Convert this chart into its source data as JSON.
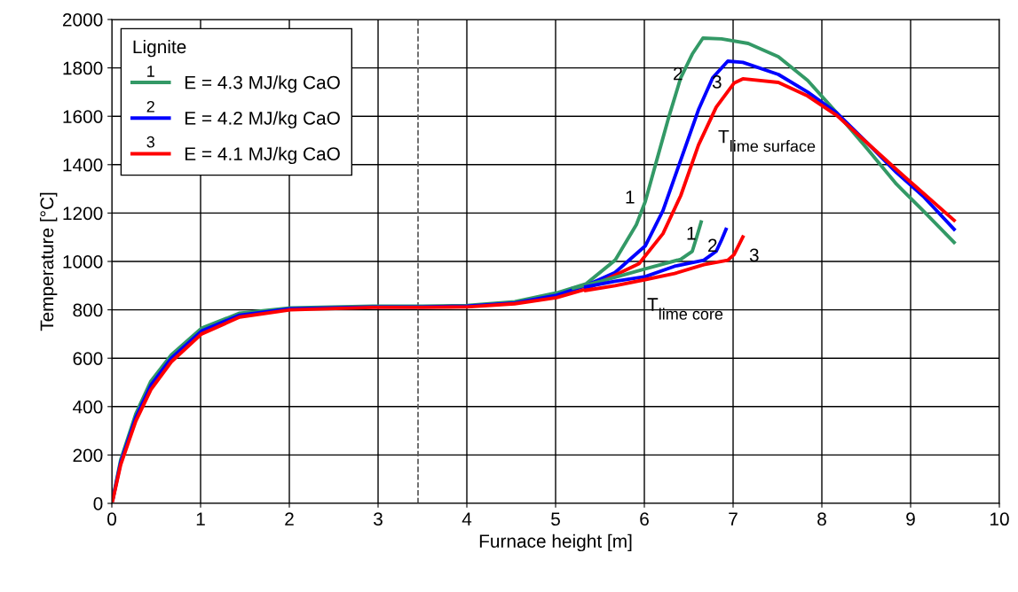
{
  "chart_data": {
    "type": "line",
    "xlabel": "Furnace height [m]",
    "ylabel": "Temperature [°C]",
    "legend_title": "Lignite",
    "xlim": [
      0,
      10
    ],
    "xticks": [
      0,
      1,
      2,
      3,
      4,
      5,
      6,
      7,
      8,
      9,
      10
    ],
    "ylim": [
      0,
      2000
    ],
    "yticks": [
      0,
      200,
      400,
      600,
      800,
      1000,
      1200,
      1400,
      1600,
      1800,
      2000
    ],
    "grid": true,
    "legend": "top left",
    "marker": "none",
    "line_style": "solid",
    "series": [
      {
        "name": "E = 4.3 MJ/kg CaO",
        "color": "#339966",
        "x": [
          0.01,
          0.1,
          0.27,
          0.44,
          0.67,
          1.01,
          1.44,
          2.01,
          2.94,
          3.5,
          4.0,
          4.54,
          5.01,
          5.34,
          5.67,
          5.91,
          6.01,
          6.14,
          6.27,
          6.41,
          6.54,
          6.66,
          6.87,
          7.17,
          7.51,
          7.84,
          8.17,
          8.51,
          8.84,
          9.14,
          9.49
        ],
        "values": [
          18,
          180,
          370,
          505,
          614,
          724,
          786,
          808,
          815,
          815,
          818,
          834,
          870,
          907,
          1005,
          1152,
          1247,
          1419,
          1590,
          1759,
          1857,
          1923,
          1920,
          1901,
          1846,
          1748,
          1613,
          1466,
          1320,
          1210,
          1079
        ]
      },
      {
        "name": "E = 4.2 MJ/kg CaO",
        "color": "#0000ff",
        "x": [
          0.01,
          0.1,
          0.27,
          0.44,
          0.67,
          1.01,
          1.44,
          2.01,
          2.94,
          3.5,
          4.0,
          4.54,
          5.01,
          5.34,
          5.67,
          6.01,
          6.21,
          6.41,
          6.61,
          6.77,
          6.94,
          7.11,
          7.51,
          7.84,
          8.17,
          8.51,
          8.84,
          9.14,
          9.49
        ],
        "values": [
          15,
          170,
          355,
          488,
          600,
          712,
          778,
          804,
          812,
          812,
          815,
          828,
          860,
          900,
          954,
          1064,
          1210,
          1419,
          1627,
          1759,
          1828,
          1823,
          1773,
          1700,
          1613,
          1490,
          1368,
          1270,
          1133
        ]
      },
      {
        "name": "E = 4.1 MJ/kg CaO",
        "color": "#ff0000",
        "x": [
          0.01,
          0.1,
          0.27,
          0.44,
          0.67,
          1.01,
          1.44,
          2.01,
          2.94,
          3.5,
          4.0,
          4.54,
          5.01,
          5.34,
          5.67,
          5.94,
          6.21,
          6.41,
          6.61,
          6.81,
          7.01,
          7.11,
          7.51,
          7.84,
          8.17,
          8.51,
          8.84,
          9.14,
          9.49
        ],
        "values": [
          12,
          160,
          340,
          470,
          585,
          700,
          770,
          800,
          810,
          810,
          812,
          825,
          850,
          885,
          943,
          991,
          1115,
          1272,
          1481,
          1638,
          1737,
          1755,
          1740,
          1684,
          1603,
          1490,
          1380,
          1283,
          1170
        ]
      },
      {
        "color": "#339966",
        "x": [
          5.2,
          5.51,
          6.01,
          6.41,
          6.54,
          6.59,
          6.64
        ],
        "values": [
          890,
          918,
          969,
          1009,
          1042,
          1101,
          1163
        ]
      },
      {
        "color": "#0000ff",
        "x": [
          5.34,
          5.67,
          6.01,
          6.34,
          6.67,
          6.81,
          6.87,
          6.92
        ],
        "values": [
          895,
          918,
          937,
          980,
          1005,
          1042,
          1089,
          1133
        ]
      },
      {
        "color": "#ff0000",
        "x": [
          5.34,
          5.67,
          6.01,
          6.34,
          6.67,
          6.94,
          7.01,
          7.11
        ],
        "values": [
          880,
          900,
          925,
          950,
          987,
          1005,
          1028,
          1101
        ]
      }
    ],
    "ref_lines": [
      {
        "axis": "x",
        "value": 3.45,
        "color": "#555555",
        "line_style": "dashed"
      }
    ],
    "annotations": [
      "1",
      "2",
      "3",
      "1",
      "2",
      "3",
      "1",
      "2",
      "3",
      "T$_{lime surface}$",
      "T$_{lime core}$"
    ]
  }
}
